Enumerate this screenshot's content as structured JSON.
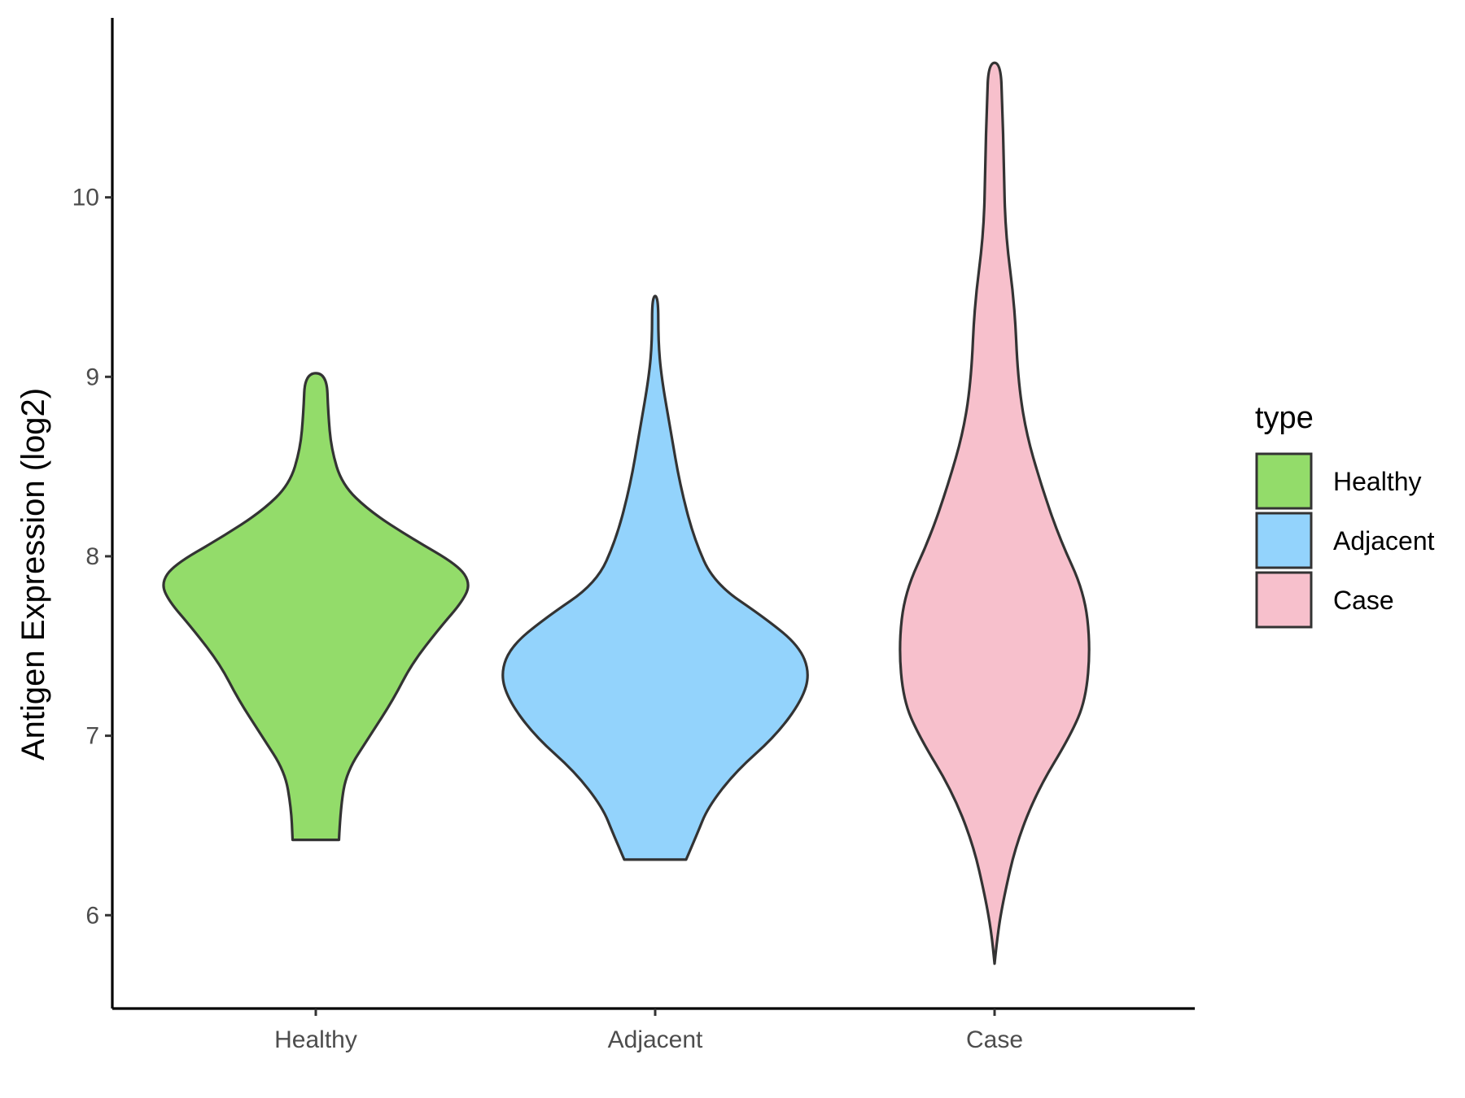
{
  "chart_data": {
    "type": "violin",
    "title": "",
    "xlabel": "",
    "ylabel": "Antigen Expression (log2)",
    "ylim": [
      5.48,
      11.0
    ],
    "yticks": [
      6,
      7,
      8,
      9,
      10
    ],
    "categories": [
      "Healthy",
      "Adjacent",
      "Case"
    ],
    "legend": {
      "title": "type",
      "placement": "right",
      "entries": [
        "Healthy",
        "Adjacent",
        "Case"
      ]
    },
    "colors": {
      "Healthy": "#93dc6a",
      "Adjacent": "#93d3fc",
      "Case": "#f7c0cc",
      "outline": "#333333"
    },
    "series": [
      {
        "name": "Healthy",
        "min": 6.42,
        "max": 9.02,
        "density": [
          [
            6.42,
            0.15
          ],
          [
            6.6,
            0.16
          ],
          [
            6.8,
            0.2
          ],
          [
            7.0,
            0.35
          ],
          [
            7.2,
            0.5
          ],
          [
            7.4,
            0.62
          ],
          [
            7.6,
            0.8
          ],
          [
            7.75,
            0.95
          ],
          [
            7.85,
            1.0
          ],
          [
            7.95,
            0.92
          ],
          [
            8.1,
            0.62
          ],
          [
            8.25,
            0.35
          ],
          [
            8.4,
            0.17
          ],
          [
            8.6,
            0.1
          ],
          [
            8.8,
            0.08
          ],
          [
            9.02,
            0.07
          ]
        ]
      },
      {
        "name": "Adjacent",
        "min": 6.31,
        "max": 9.45,
        "density": [
          [
            6.31,
            0.2
          ],
          [
            6.45,
            0.27
          ],
          [
            6.6,
            0.34
          ],
          [
            6.8,
            0.52
          ],
          [
            7.0,
            0.78
          ],
          [
            7.2,
            0.95
          ],
          [
            7.35,
            1.0
          ],
          [
            7.5,
            0.93
          ],
          [
            7.65,
            0.72
          ],
          [
            7.85,
            0.38
          ],
          [
            8.1,
            0.25
          ],
          [
            8.4,
            0.16
          ],
          [
            8.7,
            0.1
          ],
          [
            9.0,
            0.04
          ],
          [
            9.2,
            0.02
          ],
          [
            9.45,
            0.02
          ]
        ]
      },
      {
        "name": "Case",
        "min": 5.73,
        "max": 10.75,
        "density": [
          [
            5.73,
            0.0
          ],
          [
            5.9,
            0.02
          ],
          [
            6.1,
            0.06
          ],
          [
            6.4,
            0.14
          ],
          [
            6.7,
            0.28
          ],
          [
            7.0,
            0.49
          ],
          [
            7.2,
            0.59
          ],
          [
            7.5,
            0.62
          ],
          [
            7.8,
            0.58
          ],
          [
            8.1,
            0.42
          ],
          [
            8.4,
            0.3
          ],
          [
            8.7,
            0.2
          ],
          [
            9.0,
            0.15
          ],
          [
            9.4,
            0.13
          ],
          [
            9.8,
            0.07
          ],
          [
            10.2,
            0.06
          ],
          [
            10.5,
            0.05
          ],
          [
            10.75,
            0.04
          ]
        ]
      }
    ]
  }
}
